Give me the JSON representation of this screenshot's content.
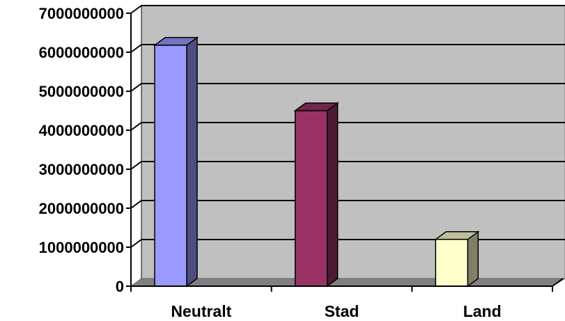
{
  "chart_data": {
    "type": "bar",
    "categories": [
      "Neutralt",
      "Stad",
      "Land"
    ],
    "values": [
      6180000000,
      4500000000,
      1200000000
    ],
    "colors": [
      "#9999ff",
      "#993366",
      "#ffffcc"
    ],
    "title": "",
    "xlabel": "",
    "ylabel": "",
    "ylim": [
      0,
      7000000000
    ],
    "ytick_step": 1000000000,
    "ytick_labels": [
      "0",
      "1000000000",
      "2000000000",
      "3000000000",
      "4000000000",
      "5000000000",
      "6000000000",
      "7000000000"
    ],
    "grid": true,
    "legend": "none",
    "plot_background": "#c0c0c0"
  }
}
